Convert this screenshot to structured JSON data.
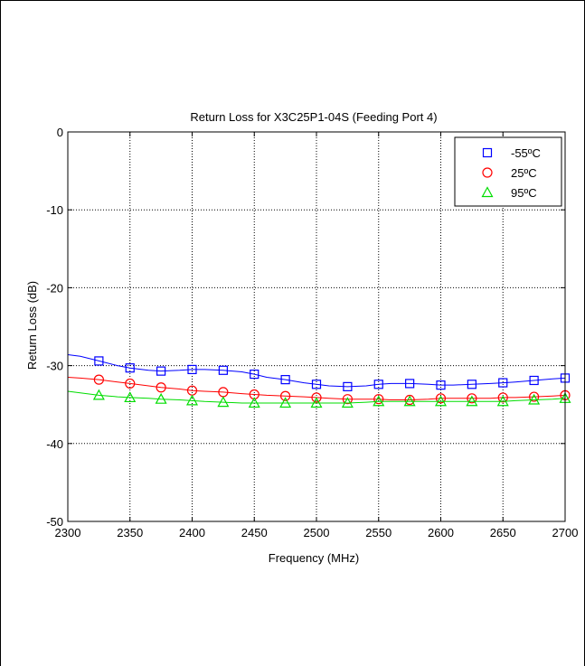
{
  "chart_data": {
    "type": "line",
    "title": "Return Loss for X3C25P1-04S (Feeding Port 4)",
    "xlabel": "Frequency (MHz)",
    "ylabel": "Return Loss (dB)",
    "xlim": [
      2300,
      2700
    ],
    "ylim": [
      -50,
      0
    ],
    "xticks": [
      2300,
      2350,
      2400,
      2450,
      2500,
      2550,
      2600,
      2650,
      2700
    ],
    "yticks": [
      0,
      -10,
      -20,
      -30,
      -40,
      -50
    ],
    "grid": true,
    "legend_position": "top-right",
    "series": [
      {
        "name": "-55ºC",
        "color": "#0000ff",
        "marker": "square",
        "x": [
          2300,
          2310,
          2325,
          2340,
          2350,
          2365,
          2375,
          2390,
          2400,
          2410,
          2425,
          2440,
          2450,
          2460,
          2475,
          2490,
          2500,
          2510,
          2525,
          2540,
          2550,
          2560,
          2575,
          2590,
          2600,
          2610,
          2625,
          2640,
          2650,
          2660,
          2675,
          2690,
          2700
        ],
        "y": [
          -28.6,
          -28.8,
          -29.4,
          -30.0,
          -30.3,
          -30.6,
          -30.7,
          -30.6,
          -30.5,
          -30.5,
          -30.6,
          -30.8,
          -31.1,
          -31.5,
          -31.8,
          -32.2,
          -32.4,
          -32.6,
          -32.7,
          -32.6,
          -32.4,
          -32.3,
          -32.3,
          -32.4,
          -32.5,
          -32.5,
          -32.4,
          -32.3,
          -32.2,
          -32.1,
          -31.9,
          -31.7,
          -31.6
        ]
      },
      {
        "name": "25ºC",
        "color": "#ff0000",
        "marker": "circle",
        "x": [
          2300,
          2310,
          2325,
          2340,
          2350,
          2365,
          2375,
          2390,
          2400,
          2410,
          2425,
          2440,
          2450,
          2460,
          2475,
          2490,
          2500,
          2510,
          2525,
          2540,
          2550,
          2560,
          2575,
          2590,
          2600,
          2610,
          2625,
          2640,
          2650,
          2660,
          2675,
          2690,
          2700
        ],
        "y": [
          -31.5,
          -31.6,
          -31.8,
          -32.1,
          -32.3,
          -32.6,
          -32.8,
          -33.0,
          -33.2,
          -33.3,
          -33.4,
          -33.6,
          -33.7,
          -33.8,
          -33.9,
          -34.0,
          -34.1,
          -34.2,
          -34.3,
          -34.3,
          -34.3,
          -34.4,
          -34.4,
          -34.3,
          -34.2,
          -34.2,
          -34.2,
          -34.2,
          -34.1,
          -34.1,
          -34.0,
          -33.9,
          -33.8
        ]
      },
      {
        "name": "95ºC",
        "color": "#00dd00",
        "marker": "triangle",
        "x": [
          2300,
          2310,
          2325,
          2340,
          2350,
          2365,
          2375,
          2390,
          2400,
          2410,
          2425,
          2440,
          2450,
          2460,
          2475,
          2490,
          2500,
          2510,
          2525,
          2540,
          2550,
          2560,
          2575,
          2590,
          2600,
          2610,
          2625,
          2640,
          2650,
          2660,
          2675,
          2690,
          2700
        ],
        "y": [
          -33.3,
          -33.5,
          -33.8,
          -34.0,
          -34.1,
          -34.2,
          -34.3,
          -34.4,
          -34.5,
          -34.6,
          -34.7,
          -34.8,
          -34.8,
          -34.8,
          -34.8,
          -34.8,
          -34.8,
          -34.8,
          -34.8,
          -34.7,
          -34.6,
          -34.6,
          -34.6,
          -34.6,
          -34.6,
          -34.6,
          -34.6,
          -34.6,
          -34.6,
          -34.5,
          -34.4,
          -34.3,
          -34.2
        ]
      }
    ],
    "markers_x": [
      2325,
      2350,
      2375,
      2400,
      2425,
      2450,
      2475,
      2500,
      2525,
      2550,
      2575,
      2600,
      2625,
      2650,
      2675,
      2700
    ]
  }
}
